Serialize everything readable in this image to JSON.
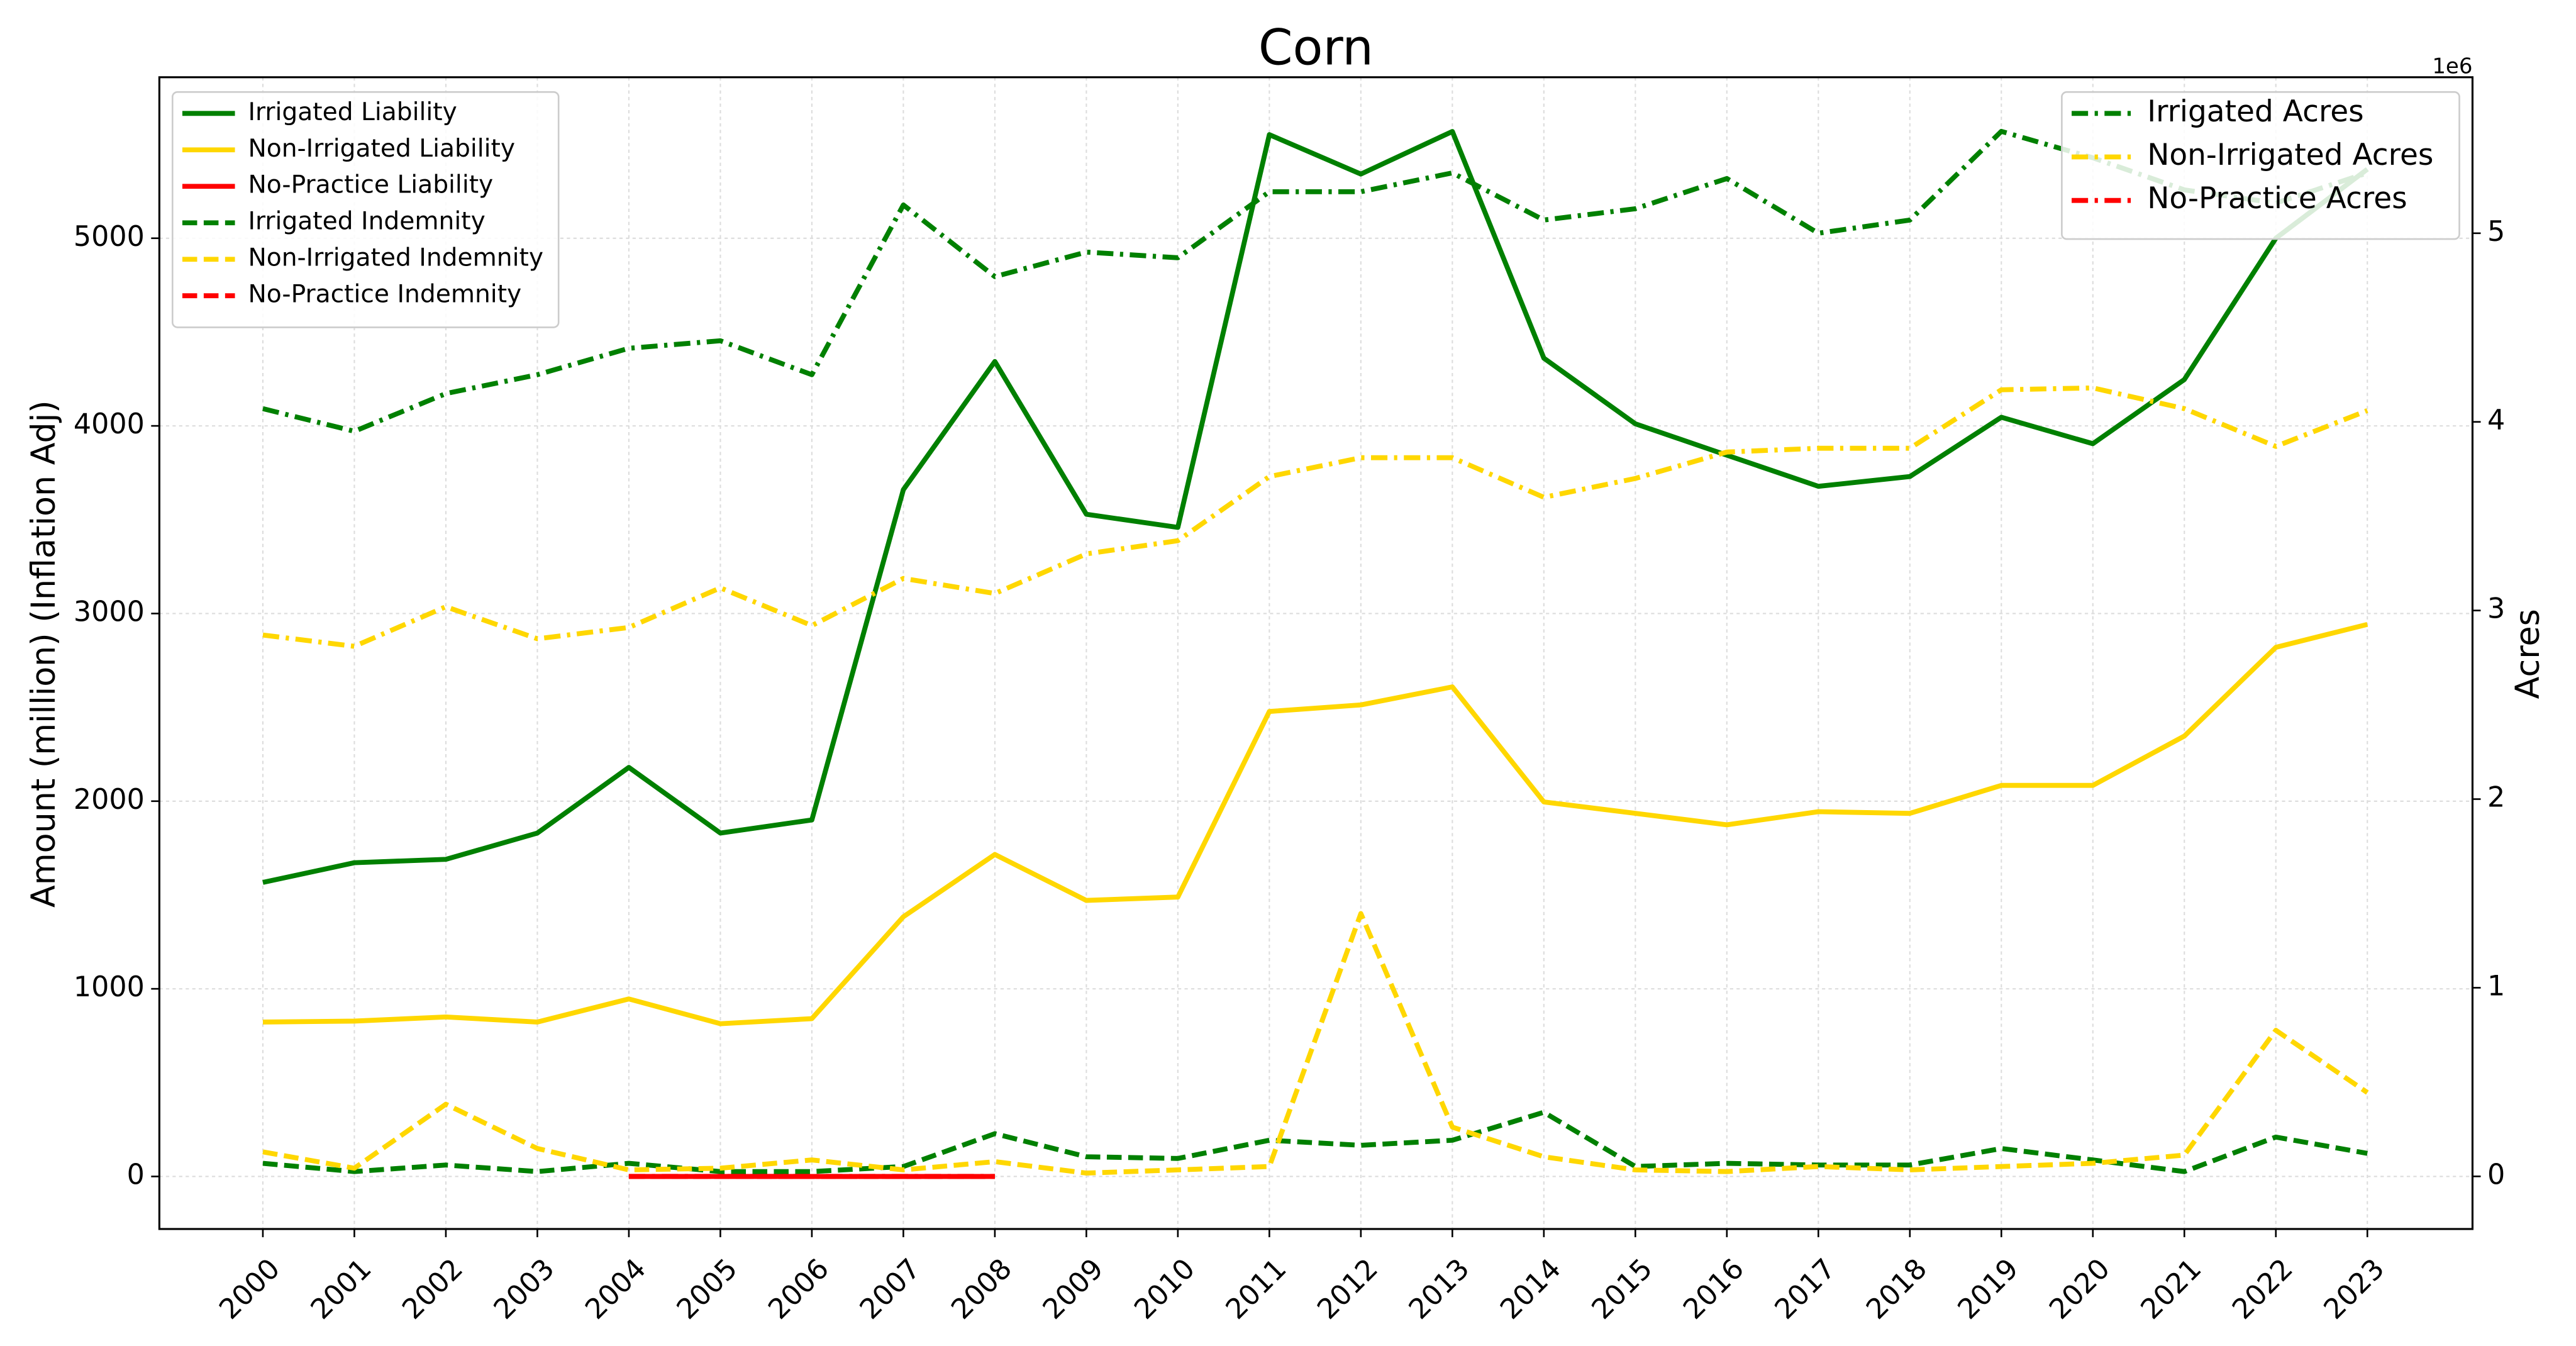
{
  "chart_data": {
    "type": "line",
    "title": "Corn",
    "ylabel": "Amount (million) (Inflation Adj)",
    "y2label": "Acres",
    "y2_offset_label": "1e6",
    "categories": [
      "2000",
      "2001",
      "2002",
      "2003",
      "2004",
      "2005",
      "2006",
      "2007",
      "2008",
      "2009",
      "2010",
      "2011",
      "2012",
      "2013",
      "2014",
      "2015",
      "2016",
      "2017",
      "2018",
      "2019",
      "2020",
      "2021",
      "2022",
      "2023"
    ],
    "ylim": [
      -280,
      5858
    ],
    "yticks": [
      0,
      1000,
      2000,
      3000,
      4000,
      5000
    ],
    "y2lim": [
      -279000,
      5827000
    ],
    "y2ticks": [
      {
        "value": 0,
        "label": "0"
      },
      {
        "value": 1000000,
        "label": "1"
      },
      {
        "value": 2000000,
        "label": "2"
      },
      {
        "value": 3000000,
        "label": "3"
      },
      {
        "value": 4000000,
        "label": "4"
      },
      {
        "value": 5000000,
        "label": "5"
      }
    ],
    "grid": true,
    "legend_loc": {
      "y": "upper left",
      "y2": "upper right"
    },
    "series": [
      {
        "name": "Irrigated Liability",
        "color": "#008000",
        "dash": "solid",
        "axis": "y",
        "values": [
          1567,
          1672,
          1690,
          1830,
          2180,
          1830,
          1900,
          3660,
          4343,
          3529,
          3459,
          5552,
          5342,
          5569,
          4361,
          4011,
          3844,
          3678,
          3730,
          4046,
          3905,
          4247,
          5000,
          5368
        ]
      },
      {
        "name": "Non-Irrigated Liability",
        "color": "#ffd700",
        "dash": "solid",
        "axis": "y",
        "values": [
          823,
          828,
          850,
          823,
          946,
          814,
          841,
          1384,
          1716,
          1471,
          1489,
          2478,
          2513,
          2609,
          1996,
          1935,
          1874,
          1944,
          1935,
          2084,
          2084,
          2347,
          2820,
          2942
        ]
      },
      {
        "name": "No-Practice Liability",
        "color": "#ff0000",
        "dash": "solid",
        "axis": "y",
        "values": [
          null,
          null,
          null,
          null,
          0,
          0,
          0,
          0,
          0,
          null,
          null,
          null,
          null,
          null,
          null,
          null,
          null,
          null,
          null,
          null,
          null,
          null,
          null,
          null
        ]
      },
      {
        "name": "Irrigated Indemnity",
        "color": "#008000",
        "dash": "dashed",
        "axis": "y",
        "values": [
          70,
          26,
          61,
          26,
          70,
          26,
          26,
          53,
          228,
          105,
          96,
          193,
          166,
          193,
          342,
          53,
          70,
          61,
          61,
          149,
          88,
          26,
          210,
          123
        ]
      },
      {
        "name": "Non-Irrigated Indemnity",
        "color": "#ffd700",
        "dash": "dashed",
        "axis": "y",
        "values": [
          131,
          44,
          385,
          149,
          35,
          44,
          88,
          35,
          79,
          18,
          35,
          53,
          1401,
          263,
          105,
          35,
          26,
          53,
          35,
          53,
          70,
          114,
          779,
          447
        ]
      },
      {
        "name": "No-Practice Indemnity",
        "color": "#ff0000",
        "dash": "dashed",
        "axis": "y",
        "values": [
          null,
          null,
          null,
          null,
          0,
          0,
          0,
          0,
          0,
          null,
          null,
          null,
          null,
          null,
          null,
          null,
          null,
          null,
          null,
          null,
          null,
          null,
          null,
          null
        ]
      },
      {
        "name": "Irrigated Acres",
        "color": "#008000",
        "dash": "dashdot",
        "axis": "y2",
        "values": [
          4070000,
          3950000,
          4150000,
          4250000,
          4390000,
          4430000,
          4250000,
          5150000,
          4770000,
          4900000,
          4870000,
          5220000,
          5220000,
          5320000,
          5070000,
          5130000,
          5290000,
          5000000,
          5070000,
          5540000,
          5400000,
          5230000,
          5160000,
          5320000
        ]
      },
      {
        "name": "Non-Irrigated Acres",
        "color": "#ffd700",
        "dash": "dashdot",
        "axis": "y2",
        "values": [
          2870000,
          2810000,
          3020000,
          2850000,
          2910000,
          3120000,
          2920000,
          3170000,
          3090000,
          3300000,
          3370000,
          3710000,
          3810000,
          3810000,
          3600000,
          3700000,
          3840000,
          3860000,
          3860000,
          4170000,
          4180000,
          4070000,
          3870000,
          4060000
        ]
      },
      {
        "name": "No-Practice Acres",
        "color": "#ff0000",
        "dash": "dashdot",
        "axis": "y2",
        "values": [
          null,
          null,
          null,
          null,
          0,
          0,
          0,
          0,
          0,
          null,
          null,
          null,
          null,
          null,
          null,
          null,
          null,
          null,
          null,
          null,
          null,
          null,
          null,
          null
        ]
      }
    ]
  }
}
